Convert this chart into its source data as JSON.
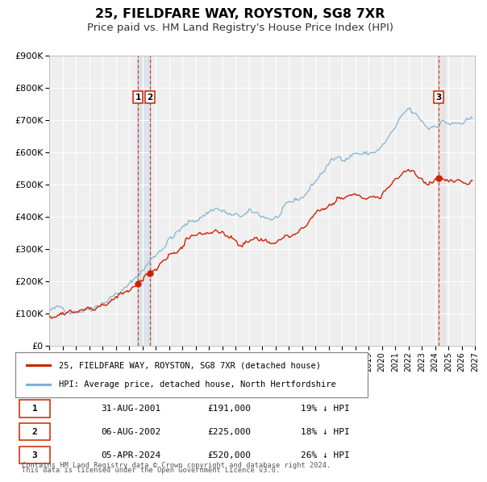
{
  "title": "25, FIELDFARE WAY, ROYSTON, SG8 7XR",
  "subtitle": "Price paid vs. HM Land Registry's House Price Index (HPI)",
  "ylim": [
    0,
    900000
  ],
  "yticks": [
    0,
    100000,
    200000,
    300000,
    400000,
    500000,
    600000,
    700000,
    800000,
    900000
  ],
  "ytick_labels": [
    "£0",
    "£100K",
    "£200K",
    "£300K",
    "£400K",
    "£500K",
    "£600K",
    "£700K",
    "£800K",
    "£900K"
  ],
  "xlim_start": 1995.0,
  "xlim_end": 2027.0,
  "background_color": "#ffffff",
  "plot_bg_color": "#efefef",
  "grid_color": "#ffffff",
  "hpi_color": "#7ab3d4",
  "price_color": "#cc2200",
  "transactions": [
    {
      "date_year": 2001.667,
      "price": 191000,
      "label": "1"
    },
    {
      "date_year": 2002.583,
      "price": 225000,
      "label": "2"
    },
    {
      "date_year": 2024.27,
      "price": 520000,
      "label": "3"
    }
  ],
  "transaction_dates": [
    "31-AUG-2001",
    "06-AUG-2002",
    "05-APR-2024"
  ],
  "transaction_prices": [
    "£191,000",
    "£225,000",
    "£520,000"
  ],
  "transaction_hpi": [
    "19% ↓ HPI",
    "18% ↓ HPI",
    "26% ↓ HPI"
  ],
  "legend_label_price": "25, FIELDFARE WAY, ROYSTON, SG8 7XR (detached house)",
  "legend_label_hpi": "HPI: Average price, detached house, North Hertfordshire",
  "footer1": "Contains HM Land Registry data © Crown copyright and database right 2024.",
  "footer2": "This data is licensed under the Open Government Licence v3.0."
}
